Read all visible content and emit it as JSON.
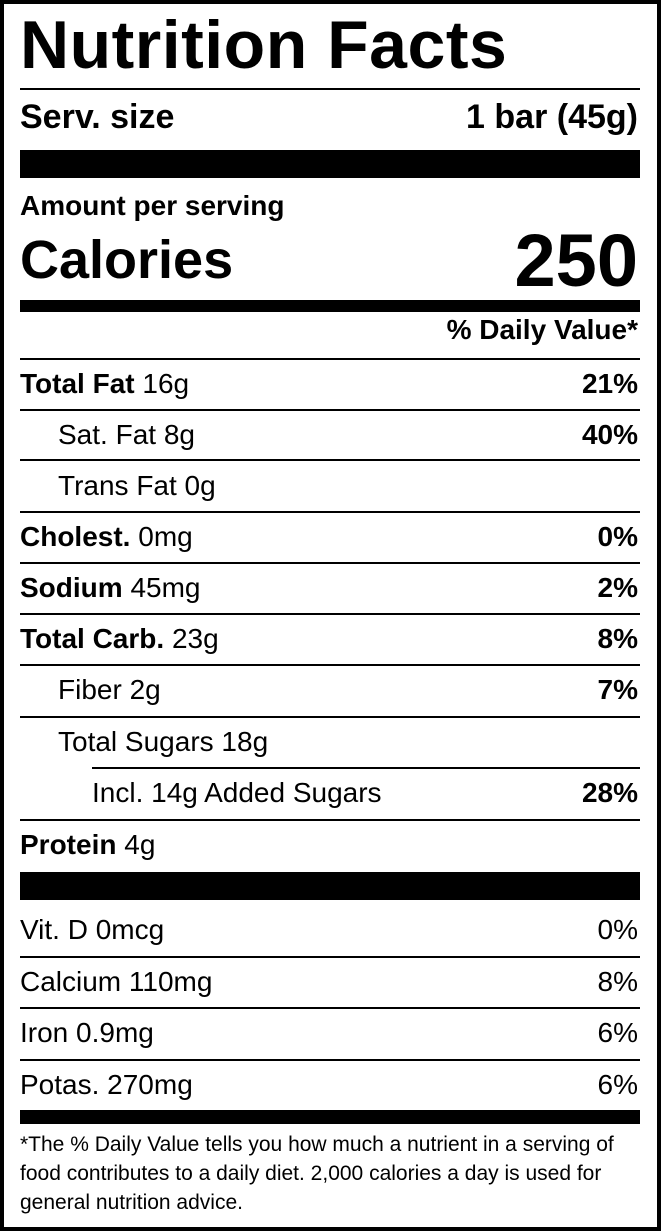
{
  "title": "Nutrition Facts",
  "serving": {
    "label": "Serv. size",
    "value": "1 bar (45g)"
  },
  "amount_per_serving": "Amount per serving",
  "calories": {
    "label": "Calories",
    "value": "250"
  },
  "daily_value_header": "% Daily Value*",
  "nutrients": [
    {
      "bold": "Total Fat",
      "amount": "16g",
      "dv": "21%"
    },
    {
      "bold": "",
      "amount": "Sat. Fat 8g",
      "dv": "40%"
    },
    {
      "bold": "",
      "amount": "Trans Fat 0g",
      "dv": ""
    },
    {
      "bold": "Cholest.",
      "amount": "0mg",
      "dv": "0%"
    },
    {
      "bold": "Sodium",
      "amount": "45mg",
      "dv": "2%"
    },
    {
      "bold": "Total Carb.",
      "amount": "23g",
      "dv": "8%"
    },
    {
      "bold": "",
      "amount": "Fiber 2g",
      "dv": "7%"
    },
    {
      "bold": "",
      "amount": "Total Sugars 18g",
      "dv": ""
    },
    {
      "bold": "",
      "amount": "Incl. 14g Added Sugars",
      "dv": "28%"
    },
    {
      "bold": "Protein",
      "amount": "4g",
      "dv": ""
    }
  ],
  "vitamins": [
    {
      "name": "Vit. D 0mcg",
      "dv": "0%"
    },
    {
      "name": "Calcium 110mg",
      "dv": "8%"
    },
    {
      "name": "Iron 0.9mg",
      "dv": "6%"
    },
    {
      "name": "Potas. 270mg",
      "dv": "6%"
    }
  ],
  "footnote": "*The % Daily Value tells you how much a nutrient in a serving of food contributes to a daily diet. 2,000 calories a day is used for general nutrition advice."
}
